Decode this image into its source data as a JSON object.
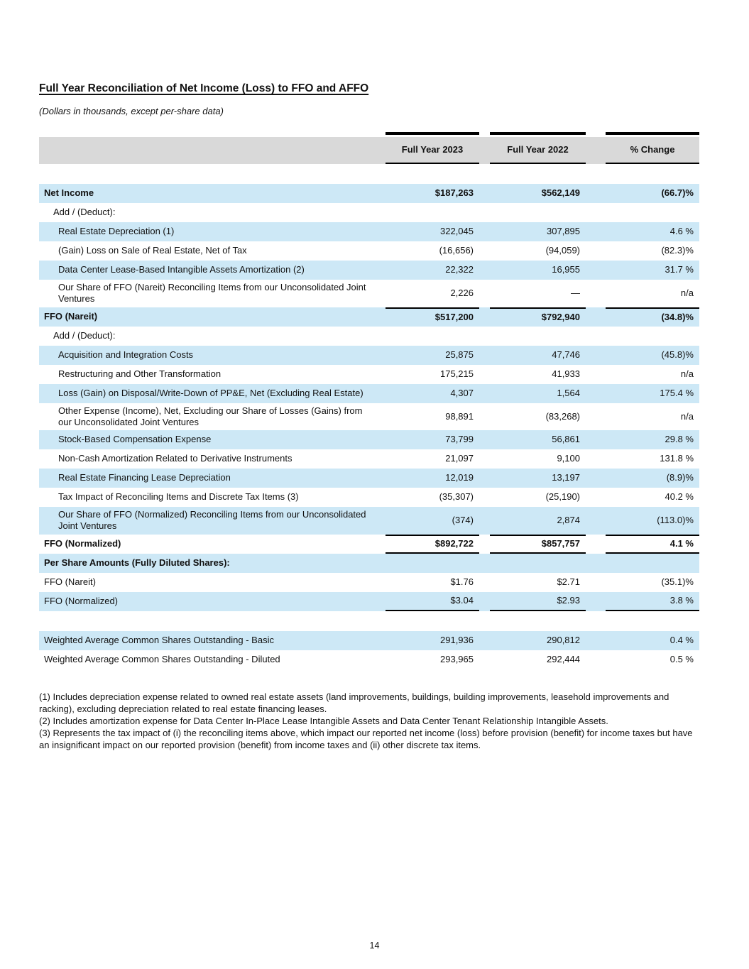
{
  "page": {
    "title": "Full Year Reconciliation of Net Income (Loss) to FFO and AFFO",
    "subtitle": "(Dollars in thousands, except per-share data)",
    "page_number": "14"
  },
  "colors": {
    "row_highlight": "#cde8f6",
    "header_band": "#d9d9d9"
  },
  "table": {
    "columns": [
      "Full Year 2023",
      "Full Year 2022",
      "% Change"
    ],
    "rows": [
      {
        "label": "Net Income",
        "c1": "$187,263",
        "c2": "$562,149",
        "c3": "(66.7)%",
        "bold": true,
        "bg": "blue",
        "indent": 0
      },
      {
        "label": "Add / (Deduct):",
        "bg": "white",
        "indent": 1
      },
      {
        "label": "Real Estate Depreciation (1)",
        "c1": "322,045",
        "c2": "307,895",
        "c3": "4.6 %",
        "bg": "blue",
        "indent": 2
      },
      {
        "label": "(Gain) Loss on Sale of Real Estate, Net of Tax",
        "c1": "(16,656)",
        "c2": "(94,059)",
        "c3": "(82.3)%",
        "bg": "white",
        "indent": 2
      },
      {
        "label": "Data Center Lease-Based Intangible Assets Amortization (2)",
        "c1": "22,322",
        "c2": "16,955",
        "c3": "31.7 %",
        "bg": "blue",
        "indent": 2
      },
      {
        "label": "Our Share of FFO (Nareit) Reconciling Items from our Unconsolidated Joint Ventures",
        "c1": "2,226",
        "c2": "—",
        "c3": "n/a",
        "bg": "white",
        "indent": 2
      },
      {
        "label": "FFO (Nareit)",
        "c1": "$517,200",
        "c2": "$792,940",
        "c3": "(34.8)%",
        "bold": true,
        "bg": "blue",
        "indent": 0,
        "rule_top": true
      },
      {
        "label": "Add / (Deduct):",
        "bg": "white",
        "indent": 1
      },
      {
        "label": "Acquisition and Integration Costs",
        "c1": "25,875",
        "c2": "47,746",
        "c3": "(45.8)%",
        "bg": "blue",
        "indent": 2
      },
      {
        "label": "Restructuring and Other Transformation",
        "c1": "175,215",
        "c2": "41,933",
        "c3": "n/a",
        "bg": "white",
        "indent": 2
      },
      {
        "label": "Loss (Gain) on Disposal/Write-Down of PP&E, Net (Excluding Real Estate)",
        "c1": "4,307",
        "c2": "1,564",
        "c3": "175.4 %",
        "bg": "blue",
        "indent": 2
      },
      {
        "label": "Other Expense (Income), Net, Excluding our Share of Losses (Gains) from our Unconsolidated Joint Ventures",
        "c1": "98,891",
        "c2": "(83,268)",
        "c3": "n/a",
        "bg": "white",
        "indent": 2
      },
      {
        "label": "Stock-Based Compensation Expense",
        "c1": "73,799",
        "c2": "56,861",
        "c3": "29.8 %",
        "bg": "blue",
        "indent": 2
      },
      {
        "label": "Non-Cash Amortization Related to Derivative Instruments",
        "c1": "21,097",
        "c2": "9,100",
        "c3": "131.8 %",
        "bg": "white",
        "indent": 2
      },
      {
        "label": "Real Estate Financing Lease Depreciation",
        "c1": "12,019",
        "c2": "13,197",
        "c3": "(8.9)%",
        "bg": "blue",
        "indent": 2
      },
      {
        "label": "Tax Impact of Reconciling Items and Discrete Tax Items (3)",
        "c1": "(35,307)",
        "c2": "(25,190)",
        "c3": "40.2 %",
        "bg": "white",
        "indent": 2
      },
      {
        "label": "Our Share of FFO (Normalized) Reconciling Items from our Unconsolidated Joint Ventures",
        "c1": "(374)",
        "c2": "2,874",
        "c3": "(113.0)%",
        "bg": "blue",
        "indent": 2
      },
      {
        "label": "FFO (Normalized)",
        "c1": "$892,722",
        "c2": "$857,757",
        "c3": "4.1 %",
        "bold": true,
        "bg": "white",
        "indent": 0,
        "rule_top": true,
        "rule_bottom": true
      },
      {
        "label": "Per Share Amounts (Fully Diluted Shares):",
        "bold": true,
        "bg": "blue",
        "indent": 0
      },
      {
        "label": "FFO (Nareit)",
        "c1": "$1.76",
        "c2": "$2.71",
        "c3": "(35.1)%",
        "bg": "white",
        "indent": 0
      },
      {
        "label": "FFO (Normalized)",
        "c1": "$3.04",
        "c2": "$2.93",
        "c3": "3.8 %",
        "bg": "blue",
        "indent": 0,
        "rule_bottom": true
      },
      {
        "spacer": true
      },
      {
        "label": "Weighted Average Common Shares Outstanding - Basic",
        "c1": "291,936",
        "c2": "290,812",
        "c3": "0.4 %",
        "bg": "blue",
        "indent": 0
      },
      {
        "label": "Weighted Average Common Shares Outstanding - Diluted",
        "c1": "293,965",
        "c2": "292,444",
        "c3": "0.5 %",
        "bg": "white",
        "indent": 0
      }
    ]
  },
  "footnotes": [
    "(1) Includes depreciation expense related to owned real estate assets (land improvements, buildings, building improvements, leasehold improvements and racking), excluding depreciation related to real estate financing leases.",
    "(2) Includes amortization expense for Data Center In-Place Lease Intangible Assets and Data Center Tenant Relationship Intangible Assets.",
    "(3) Represents the tax impact of (i) the reconciling items above, which impact our reported net income (loss) before provision (benefit) for income taxes but have an insignificant impact on our reported provision (benefit) from income taxes and (ii) other discrete tax items."
  ]
}
